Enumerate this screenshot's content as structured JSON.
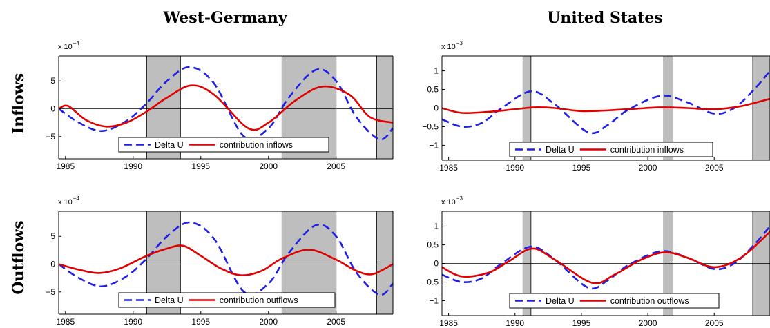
{
  "figure": {
    "columns": [
      "West-Germany",
      "United States"
    ],
    "rows": [
      "Inflows",
      "Outflows"
    ]
  },
  "colors": {
    "delta": "#1f1fe6",
    "contribution": "#e00000",
    "recession": "#bebebe"
  },
  "chart_data": [
    {
      "type": "line",
      "country": "West-Germany",
      "panel": "Inflows",
      "title": "",
      "multiplier": {
        "base": "x 10",
        "exp": "−4"
      },
      "xlim": [
        1984.5,
        2009.2
      ],
      "ylim": [
        -9,
        9.5
      ],
      "xticks": [
        1985,
        1990,
        1995,
        2000,
        2005
      ],
      "yticks": [
        -5,
        0,
        5
      ],
      "ytick_labels": [
        "−5",
        "0",
        "5"
      ],
      "recessions": [
        [
          1991.0,
          1993.5
        ],
        [
          2001.0,
          2005.0
        ],
        [
          2008.0,
          2009.2
        ]
      ],
      "legend": {
        "location": "bottom-right",
        "entries": [
          "Delta U",
          "contribution inflows"
        ]
      },
      "series": [
        {
          "name": "Delta U",
          "style": "dashed",
          "x": [
            1984.5,
            1986,
            1987.7,
            1989.5,
            1991,
            1992.5,
            1994.2,
            1996,
            1998.2,
            2000,
            2001.5,
            2003.5,
            2005,
            2006.5,
            2008.2,
            2009.2
          ],
          "y": [
            0,
            -2.5,
            -4.0,
            -2.2,
            1.0,
            5.0,
            7.5,
            4.5,
            -5.0,
            -3.5,
            2.0,
            7.0,
            5.0,
            -1.5,
            -5.5,
            -3.5
          ]
        },
        {
          "name": "contribution inflows",
          "style": "solid",
          "x": [
            1984.5,
            1985.2,
            1986.5,
            1988,
            1989.5,
            1991,
            1992.5,
            1994.3,
            1996,
            1998.5,
            2000,
            2002,
            2004,
            2006,
            2007.5,
            2009.2
          ],
          "y": [
            0,
            0.5,
            -2.0,
            -3.2,
            -2.5,
            -0.5,
            2.0,
            4.2,
            2.5,
            -3.5,
            -2.5,
            1.5,
            4.0,
            2.5,
            -1.5,
            -2.5
          ]
        }
      ]
    },
    {
      "type": "line",
      "country": "United States",
      "panel": "Inflows",
      "title": "",
      "multiplier": {
        "base": "x 10",
        "exp": "−3"
      },
      "xlim": [
        1984.5,
        2009.2
      ],
      "ylim": [
        -1.4,
        1.4
      ],
      "xticks": [
        1985,
        1990,
        1995,
        2000,
        2005
      ],
      "yticks": [
        -1,
        -0.5,
        0,
        0.5,
        1
      ],
      "ytick_labels": [
        "−1",
        "−0.5",
        "0",
        "0.5",
        "1"
      ],
      "recessions": [
        [
          1990.6,
          1991.2
        ],
        [
          2001.2,
          2001.9
        ],
        [
          2007.9,
          2009.2
        ]
      ],
      "legend": {
        "location": "bottom-center",
        "entries": [
          "Delta U",
          "contribution inflows"
        ]
      },
      "series": [
        {
          "name": "Delta U",
          "style": "dashed",
          "x": [
            1984.5,
            1986,
            1987.5,
            1989,
            1991.2,
            1993,
            1995.5,
            1997,
            1998.5,
            2001,
            2003,
            2005,
            2006.5,
            2008,
            2009.2
          ],
          "y": [
            -0.3,
            -0.5,
            -0.4,
            0.0,
            0.45,
            0.1,
            -0.65,
            -0.45,
            -0.05,
            0.33,
            0.15,
            -0.15,
            0.0,
            0.5,
            1.0
          ]
        },
        {
          "name": "contribution inflows",
          "style": "solid",
          "x": [
            1984.5,
            1986,
            1988,
            1990,
            1991.5,
            1993,
            1995,
            1997,
            1999,
            2001,
            2003,
            2005,
            2007,
            2009.2
          ],
          "y": [
            0.0,
            -0.13,
            -0.1,
            -0.03,
            0.02,
            0.0,
            -0.08,
            -0.06,
            -0.02,
            0.02,
            0.0,
            -0.03,
            0.05,
            0.25
          ]
        }
      ]
    },
    {
      "type": "line",
      "country": "West-Germany",
      "panel": "Outflows",
      "title": "",
      "multiplier": {
        "base": "x 10",
        "exp": "−4"
      },
      "xlim": [
        1984.5,
        2009.2
      ],
      "ylim": [
        -9,
        9.5
      ],
      "xticks": [
        1985,
        1990,
        1995,
        2000,
        2005
      ],
      "yticks": [
        -5,
        0,
        5
      ],
      "ytick_labels": [
        "−5",
        "0",
        "5"
      ],
      "recessions": [
        [
          1991.0,
          1993.5
        ],
        [
          2001.0,
          2005.0
        ],
        [
          2008.0,
          2009.2
        ]
      ],
      "legend": {
        "location": "bottom-right",
        "entries": [
          "Delta U",
          "contribution outflows"
        ]
      },
      "series": [
        {
          "name": "Delta U",
          "style": "dashed",
          "x": [
            1984.5,
            1986,
            1987.7,
            1989.5,
            1991,
            1992.5,
            1994.2,
            1996,
            1998.2,
            2000,
            2001.5,
            2003.5,
            2005,
            2006.5,
            2008.2,
            2009.2
          ],
          "y": [
            0,
            -2.5,
            -4.0,
            -2.2,
            1.0,
            5.0,
            7.5,
            4.5,
            -5.0,
            -3.5,
            2.0,
            7.0,
            5.0,
            -1.5,
            -5.5,
            -3.5
          ]
        },
        {
          "name": "contribution outflows",
          "style": "solid",
          "x": [
            1984.5,
            1986,
            1987.5,
            1989,
            1991,
            1992.5,
            1993.7,
            1995,
            1996.5,
            1998,
            1999.5,
            2001,
            2003,
            2005,
            2006.5,
            2007.7,
            2009.2
          ],
          "y": [
            0,
            -1.0,
            -1.6,
            -0.8,
            1.5,
            2.8,
            3.3,
            1.5,
            -0.8,
            -2.0,
            -1.2,
            1.0,
            2.6,
            0.8,
            -1.2,
            -1.8,
            0
          ]
        }
      ]
    },
    {
      "type": "line",
      "country": "United States",
      "panel": "Outflows",
      "title": "",
      "multiplier": {
        "base": "x 10",
        "exp": "−3"
      },
      "xlim": [
        1984.5,
        2009.2
      ],
      "ylim": [
        -1.4,
        1.4
      ],
      "xticks": [
        1985,
        1990,
        1995,
        2000,
        2005
      ],
      "yticks": [
        -1,
        -0.5,
        0,
        0.5,
        1
      ],
      "ytick_labels": [
        "−1",
        "−0.5",
        "0",
        "0.5",
        "1"
      ],
      "recessions": [
        [
          1990.6,
          1991.2
        ],
        [
          2001.2,
          2001.9
        ],
        [
          2007.9,
          2009.2
        ]
      ],
      "legend": {
        "location": "bottom-center",
        "entries": [
          "Delta U",
          "contribution outflows"
        ]
      },
      "series": [
        {
          "name": "Delta U",
          "style": "dashed",
          "x": [
            1984.5,
            1986,
            1987.5,
            1989,
            1991.2,
            1993,
            1995.5,
            1997,
            1998.5,
            2001,
            2003,
            2005,
            2006.5,
            2008,
            2009.2
          ],
          "y": [
            -0.3,
            -0.5,
            -0.4,
            0.0,
            0.45,
            0.1,
            -0.65,
            -0.45,
            -0.05,
            0.33,
            0.15,
            -0.15,
            0.0,
            0.5,
            1.0
          ]
        },
        {
          "name": "contribution outflows",
          "style": "solid",
          "x": [
            1984.5,
            1986,
            1988,
            1989.5,
            1991.3,
            1993,
            1995.8,
            1997.5,
            1999.5,
            2001.3,
            2003,
            2005,
            2007,
            2009.2
          ],
          "y": [
            -0.1,
            -0.35,
            -0.25,
            0.05,
            0.4,
            0.1,
            -0.52,
            -0.3,
            0.1,
            0.3,
            0.15,
            -0.1,
            0.15,
            0.85
          ]
        }
      ]
    }
  ]
}
